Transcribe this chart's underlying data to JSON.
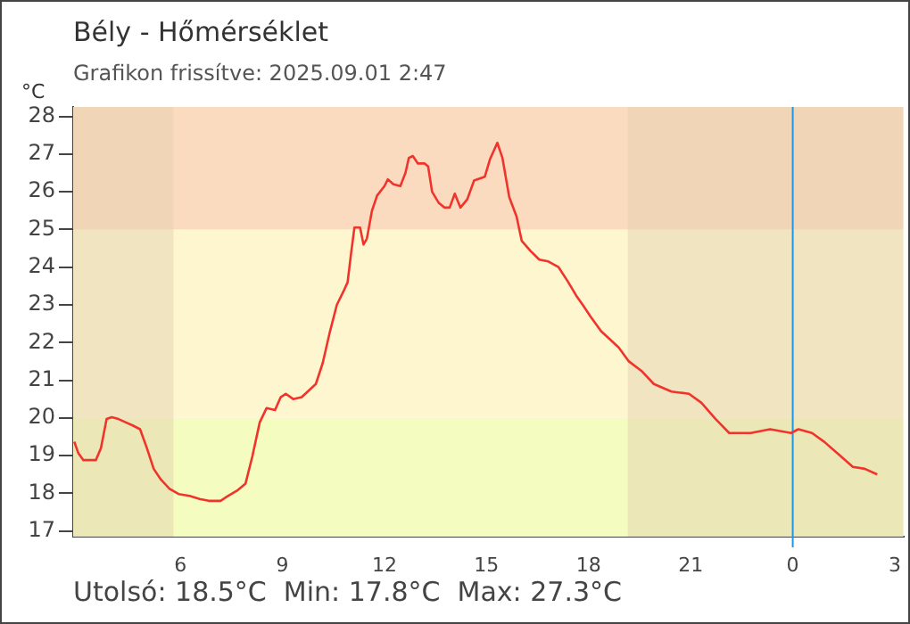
{
  "chart_data": {
    "type": "line",
    "title": "Bély - Hőmérséklet",
    "subtitle": "Grafikon frissítve: 2025.09.01 2:47",
    "ylabel": "°C",
    "annotations": [
      "Utolsó: 18.5°C  Min: 17.8°C  Max: 27.3°C"
    ],
    "x": [
      "2025-08-31T02:53",
      "2025-08-31T03:00",
      "2025-08-31T03:09",
      "2025-08-31T03:31",
      "2025-08-31T03:40",
      "2025-08-31T03:50",
      "2025-08-31T03:59",
      "2025-08-31T04:11",
      "2025-08-31T04:24",
      "2025-08-31T04:36",
      "2025-08-31T04:49",
      "2025-08-31T05:01",
      "2025-08-31T05:13",
      "2025-08-31T05:26",
      "2025-08-31T05:41",
      "2025-08-31T05:57",
      "2025-08-31T06:16",
      "2025-08-31T06:34",
      "2025-08-31T06:50",
      "2025-08-31T07:11",
      "2025-08-31T07:24",
      "2025-08-31T07:40",
      "2025-08-31T07:55",
      "2025-08-31T08:07",
      "2025-08-31T08:20",
      "2025-08-31T08:32",
      "2025-08-31T08:47",
      "2025-08-31T08:57",
      "2025-08-31T09:06",
      "2025-08-31T09:19",
      "2025-08-31T09:34",
      "2025-08-31T09:59",
      "2025-08-31T10:11",
      "2025-08-31T10:24",
      "2025-08-31T10:36",
      "2025-08-31T10:49",
      "2025-08-31T10:55",
      "2025-08-31T11:01",
      "2025-08-31T11:07",
      "2025-08-31T11:17",
      "2025-08-31T11:23",
      "2025-08-31T11:29",
      "2025-08-31T11:38",
      "2025-08-31T11:47",
      "2025-08-31T12:00",
      "2025-08-31T12:06",
      "2025-08-31T12:16",
      "2025-08-31T12:28",
      "2025-08-31T12:37",
      "2025-08-31T12:43",
      "2025-08-31T12:50",
      "2025-08-31T12:59",
      "2025-08-31T13:11",
      "2025-08-31T13:17",
      "2025-08-31T13:24",
      "2025-08-31T13:36",
      "2025-08-31T13:46",
      "2025-08-31T13:55",
      "2025-08-31T14:04",
      "2025-08-31T14:14",
      "2025-08-31T14:26",
      "2025-08-31T14:38",
      "2025-08-31T14:57",
      "2025-08-31T15:06",
      "2025-08-31T15:19",
      "2025-08-31T15:28",
      "2025-08-31T15:40",
      "2025-08-31T15:53",
      "2025-08-31T16:02",
      "2025-08-31T16:17",
      "2025-08-31T16:33",
      "2025-08-31T16:49",
      "2025-08-31T17:07",
      "2025-08-31T17:23",
      "2025-08-31T17:38",
      "2025-08-31T17:51",
      "2025-08-31T18:03",
      "2025-08-31T18:22",
      "2025-08-31T18:53",
      "2025-08-31T19:11",
      "2025-08-31T19:33",
      "2025-08-31T19:55",
      "2025-08-31T20:26",
      "2025-08-31T20:57",
      "2025-08-31T21:19",
      "2025-08-31T21:44",
      "2025-08-31T22:08",
      "2025-08-31T22:46",
      "2025-08-31T23:20",
      "2025-08-31T23:57",
      "2025-09-01T00:10",
      "2025-09-01T00:34",
      "2025-09-01T00:56",
      "2025-09-01T01:21",
      "2025-09-01T01:46",
      "2025-09-01T02:07",
      "2025-09-01T02:29"
    ],
    "series": [
      {
        "color": "#f0342c",
        "values": [
          19.37,
          19.07,
          18.88,
          18.88,
          19.2,
          19.97,
          20.02,
          19.97,
          19.88,
          19.8,
          19.7,
          19.2,
          18.65,
          18.36,
          18.12,
          17.98,
          17.93,
          17.85,
          17.8,
          17.8,
          17.93,
          18.07,
          18.26,
          18.98,
          19.88,
          20.26,
          20.21,
          20.55,
          20.64,
          20.5,
          20.55,
          20.9,
          21.45,
          22.3,
          23.0,
          23.4,
          23.6,
          24.35,
          25.05,
          25.05,
          24.6,
          24.76,
          25.5,
          25.9,
          26.15,
          26.33,
          26.2,
          26.15,
          26.5,
          26.9,
          26.95,
          26.75,
          26.75,
          26.67,
          26.0,
          25.7,
          25.58,
          25.58,
          25.95,
          25.58,
          25.8,
          26.3,
          26.4,
          26.86,
          27.3,
          26.9,
          25.86,
          25.34,
          24.7,
          24.44,
          24.2,
          24.15,
          24.0,
          23.63,
          23.25,
          22.97,
          22.7,
          22.3,
          21.87,
          21.5,
          21.25,
          20.9,
          20.7,
          20.64,
          20.4,
          19.97,
          19.6,
          19.6,
          19.7,
          19.6,
          19.7,
          19.6,
          19.36,
          19.03,
          18.7,
          18.65,
          18.5
        ]
      }
    ],
    "xlim": [
      "2025-08-31T02:51",
      "2025-09-01T03:15"
    ],
    "xticks": [
      {
        "value": "2025-08-31T06:00",
        "label": "6"
      },
      {
        "value": "2025-08-31T09:00",
        "label": "9"
      },
      {
        "value": "2025-08-31T12:00",
        "label": "12"
      },
      {
        "value": "2025-08-31T15:00",
        "label": "15"
      },
      {
        "value": "2025-08-31T18:00",
        "label": "18"
      },
      {
        "value": "2025-08-31T21:00",
        "label": "21"
      },
      {
        "value": "2025-09-01T00:00",
        "label": "0"
      },
      {
        "value": "2025-09-01T03:00",
        "label": "3"
      }
    ],
    "ylim": [
      16.85,
      28.25
    ],
    "yticks": [
      17,
      18,
      19,
      20,
      21,
      22,
      23,
      24,
      25,
      26,
      27,
      28
    ],
    "bands": [
      {
        "axis": "y",
        "from": 16.85,
        "to": 20,
        "color": "#f5fcc0"
      },
      {
        "axis": "y",
        "from": 20,
        "to": 25,
        "color": "#fdf6cf"
      },
      {
        "axis": "y",
        "from": 25,
        "to": 28.25,
        "color": "#fbdbbf"
      },
      {
        "axis": "x",
        "from": "2025-08-31T02:51",
        "to": "2025-08-31T05:48",
        "color": "#e2cfad"
      },
      {
        "axis": "x",
        "from": "2025-08-31T19:09",
        "to": "2025-09-01T03:15",
        "color": "#e2cfad"
      }
    ],
    "ref_lines": [
      {
        "axis": "x",
        "value": "2025-09-01T00:00",
        "color": "#1e96e6"
      }
    ],
    "grid": false,
    "legend": false,
    "marker": "none",
    "line_style": "solid"
  }
}
